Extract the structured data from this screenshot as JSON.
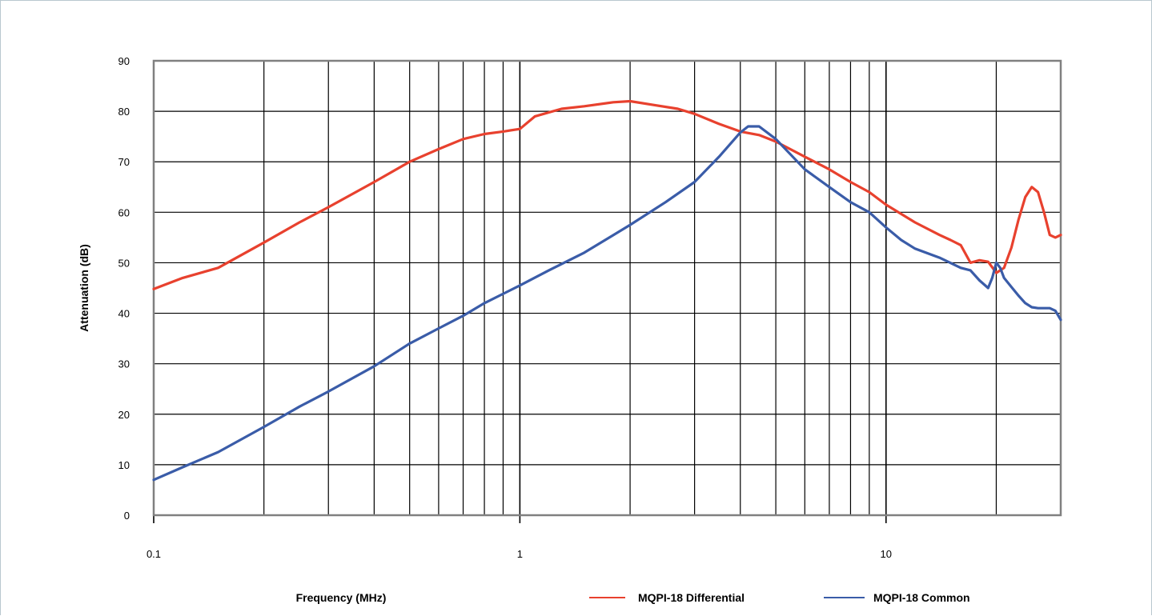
{
  "chart_data": {
    "type": "line",
    "xlabel": "Frequency (MHz)",
    "ylabel": "Attenuation (dB)",
    "x_scale": "log",
    "xlim": [
      0.1,
      30
    ],
    "ylim": [
      0,
      90
    ],
    "grid": true,
    "legend_position": "bottom-right",
    "x_ticks": [
      0.1,
      1,
      10
    ],
    "x_tick_labels": [
      "0.1",
      "1",
      "10"
    ],
    "y_ticks": [
      0,
      10,
      20,
      30,
      40,
      50,
      60,
      70,
      80,
      90
    ],
    "y_tick_labels": [
      "0",
      "10",
      "20",
      "30",
      "40",
      "50",
      "60",
      "70",
      "80",
      "90"
    ],
    "series": [
      {
        "name": "MQPI-18 Differential",
        "color": "#e8412e",
        "x": [
          0.1,
          0.12,
          0.15,
          0.2,
          0.25,
          0.3,
          0.4,
          0.5,
          0.6,
          0.7,
          0.8,
          0.9,
          1.0,
          1.1,
          1.3,
          1.5,
          1.8,
          2.0,
          2.3,
          2.7,
          3.0,
          3.5,
          4.0,
          4.5,
          5.0,
          6.0,
          7.0,
          8.0,
          9.0,
          10.0,
          12.0,
          14.0,
          15.0,
          16.0,
          17.0,
          18.0,
          19.0,
          20.0,
          21.0,
          22.0,
          23.0,
          24.0,
          25.0,
          26.0,
          27.0,
          28.0,
          29.0,
          30.0
        ],
        "y": [
          44.8,
          47,
          49,
          54,
          58,
          61,
          66,
          70,
          72.5,
          74.5,
          75.5,
          76,
          76.5,
          79,
          80.5,
          81,
          81.8,
          82,
          81.3,
          80.5,
          79.5,
          77.5,
          76,
          75.3,
          74,
          71,
          68.5,
          66,
          64,
          61.5,
          58,
          55.5,
          54.5,
          53.5,
          50,
          50.5,
          50.2,
          48,
          49,
          53,
          58.5,
          63,
          65,
          64,
          60,
          55.5,
          55,
          55.5
        ]
      },
      {
        "name": "MQPI-18 Common",
        "color": "#3a5ca8",
        "x": [
          0.1,
          0.12,
          0.15,
          0.2,
          0.25,
          0.3,
          0.4,
          0.5,
          0.6,
          0.7,
          0.8,
          1.0,
          1.2,
          1.5,
          2.0,
          2.5,
          3.0,
          3.5,
          4.0,
          4.2,
          4.5,
          5.0,
          6.0,
          7.0,
          8.0,
          9.0,
          10.0,
          11.0,
          12.0,
          14.0,
          16.0,
          17.0,
          18.0,
          19.0,
          19.5,
          20.0,
          20.5,
          21.0,
          22.0,
          23.0,
          24.0,
          25.0,
          26.0,
          27.0,
          28.0,
          29.0,
          30.0
        ],
        "y": [
          7,
          9.5,
          12.5,
          17.5,
          21.5,
          24.5,
          29.5,
          34,
          37,
          39.5,
          42,
          45.5,
          48.5,
          52,
          57.5,
          62,
          66,
          71,
          75.8,
          77,
          77,
          74.5,
          68.5,
          65,
          62,
          60,
          57,
          54.5,
          52.8,
          51,
          49,
          48.5,
          46.5,
          45,
          47,
          50,
          49,
          47,
          45.2,
          43.5,
          42,
          41.2,
          41,
          41,
          41,
          40.5,
          38.7
        ]
      }
    ]
  }
}
